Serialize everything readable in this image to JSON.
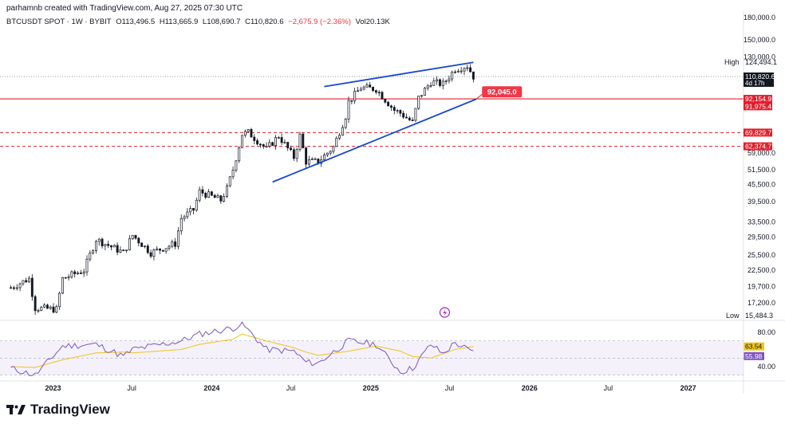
{
  "header": {
    "attribution": "parhamnb created with TradingView.com, Aug 27, 2025 07:30 UTC",
    "symbol": "BTCUSDT SPOT · 1W · BYBIT",
    "open": "O113,496.5",
    "high": "H113,665.9",
    "low": "L108,690.7",
    "close": "C110,820.6",
    "change": "−2,675.9 (−2.36%)",
    "volume": "Vol20.13K"
  },
  "footer": {
    "brand": "TradingView"
  },
  "colors": {
    "up": "#131722",
    "down": "#131722",
    "trend": "#1848cc",
    "level": "#e0202e",
    "rsi": "#7e57c2",
    "rsi_ma": "#f0c419"
  },
  "chart_data": {
    "type": "line",
    "subtype": "candlestick_weekly",
    "x_tick_labels": [
      "2023",
      "Jul",
      "2024",
      "Jul",
      "2025",
      "Jul",
      "2026",
      "Jul",
      "2027"
    ],
    "y_scale": "log",
    "y_tick_labels": [
      "180,000.0",
      "150,000.0",
      "130,000.0",
      "92,154.9",
      "91,975.4",
      "69,829.7",
      "62,374.7",
      "59,000.0",
      "51,500.0",
      "45,500.0",
      "39,500.0",
      "33,500.0",
      "29,500.0",
      "25,500.0",
      "22,500.0",
      "19,700.0",
      "17,200.0"
    ],
    "last_price_label": "110,820.6",
    "countdown": "4d 17h",
    "high_label": "High",
    "high_value": "124,494.1",
    "low_label": "Low",
    "low_value": "15,484.3",
    "annotation": "92,045.0",
    "horizontal_levels": [
      {
        "value": 92154.9,
        "style": "solid",
        "label": "92,154.9"
      },
      {
        "value": 91975.4,
        "style": "solid",
        "label": "91,975.4"
      },
      {
        "value": 69829.7,
        "style": "dashed",
        "label": "69,829.7"
      },
      {
        "value": 62374.7,
        "style": "dashed",
        "label": "62,374.7"
      }
    ],
    "trendlines": [
      {
        "name": "upper",
        "x": [
          "2024-09-16",
          "2025-08-25"
        ],
        "y": [
          102000,
          124500
        ]
      },
      {
        "name": "lower",
        "x": [
          "2024-05-20",
          "2025-09-01"
        ],
        "y": [
          46500,
          92045
        ]
      }
    ],
    "close_path": {
      "x": [
        "2022-09-26",
        "2022-11-07",
        "2022-11-21",
        "2023-01-09",
        "2023-01-23",
        "2023-03-13",
        "2023-04-10",
        "2023-06-12",
        "2023-07-03",
        "2023-08-14",
        "2023-10-09",
        "2023-10-23",
        "2023-11-20",
        "2023-12-04",
        "2024-01-22",
        "2024-02-05",
        "2024-02-19",
        "2024-03-11",
        "2024-03-25",
        "2024-05-06",
        "2024-06-03",
        "2024-07-08",
        "2024-07-22",
        "2024-08-05",
        "2024-09-02",
        "2024-10-07",
        "2024-11-04",
        "2024-11-11",
        "2024-12-09",
        "2025-01-13",
        "2025-02-24",
        "2025-03-10",
        "2025-04-07",
        "2025-04-21",
        "2025-05-19",
        "2025-06-16",
        "2025-07-14",
        "2025-08-11",
        "2025-08-25"
      ],
      "y": [
        19500,
        21000,
        16500,
        16300,
        21000,
        22500,
        29000,
        26000,
        30000,
        26000,
        28000,
        34500,
        37000,
        43000,
        40000,
        44000,
        51500,
        69000,
        70000,
        61000,
        68000,
        57000,
        68000,
        55000,
        55000,
        62000,
        80000,
        90000,
        101000,
        100000,
        84000,
        82000,
        76000,
        93000,
        106000,
        104000,
        118000,
        121000,
        110820.6
      ]
    },
    "rsi": {
      "indicator": "RSI",
      "y_tick_labels": [
        "80.00",
        "40.00"
      ],
      "band": [
        30,
        70
      ],
      "value": "55.98",
      "ma_value": "63.54",
      "x": [
        "2022-09-26",
        "2022-11-21",
        "2023-01-23",
        "2023-04-10",
        "2023-06-12",
        "2023-07-03",
        "2023-10-23",
        "2023-12-04",
        "2024-02-19",
        "2024-03-11",
        "2024-05-06",
        "2024-07-08",
        "2024-08-05",
        "2024-09-02",
        "2024-11-11",
        "2025-01-13",
        "2025-03-10",
        "2025-04-07",
        "2025-05-19",
        "2025-06-16",
        "2025-07-14",
        "2025-08-25"
      ],
      "values": [
        38,
        30,
        64,
        66,
        52,
        60,
        70,
        78,
        85,
        90,
        60,
        58,
        45,
        44,
        70,
        66,
        34,
        38,
        66,
        55,
        68,
        55.98
      ],
      "ma_values": [
        40,
        39,
        48,
        56,
        57,
        56,
        60,
        66,
        72,
        78,
        70,
        62,
        57,
        53,
        58,
        64,
        58,
        52,
        50,
        55,
        60,
        63.54
      ]
    }
  }
}
